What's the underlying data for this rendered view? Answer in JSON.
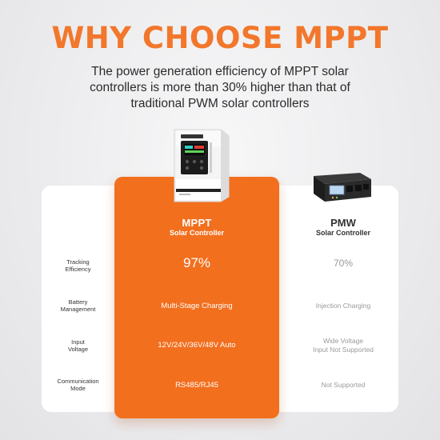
{
  "header": {
    "title": "WHY CHOOSE MPPT",
    "subtitle_lines": [
      "The power generation efficiency of MPPT solar",
      "controllers is more than 30% higher than that of",
      "traditional PWM solar controllers"
    ]
  },
  "columns": {
    "mppt": {
      "name": "MPPT",
      "subtitle": "Solar Controller"
    },
    "pwm": {
      "name": "PMW",
      "subtitle": "Solar Controller"
    }
  },
  "rows": [
    {
      "label_lines": [
        "Tracking",
        "Efficiency"
      ],
      "mppt": "97%",
      "pwm_lines": [
        "70%"
      ]
    },
    {
      "label_lines": [
        "Battery",
        "Management"
      ],
      "mppt": "Multi-Stage Charging",
      "pwm_lines": [
        "Injection Charging"
      ]
    },
    {
      "label_lines": [
        "Input",
        "Voltage"
      ],
      "mppt": "12V/24V/36V/48V Auto",
      "pwm_lines": [
        "Wide Voltage",
        "Input Not Supported"
      ]
    },
    {
      "label_lines": [
        "Communication",
        "Mode"
      ],
      "mppt": "RS485/RJ45",
      "pwm_lines": [
        "Not Supported"
      ]
    }
  ],
  "colors": {
    "accent": "#f26f1e",
    "headline": "#f2772c",
    "card": "#ffffff",
    "muted_text": "#9a9a9a"
  },
  "icons": {
    "mppt_product": "mppt-controller-device-image",
    "pwm_product": "pwm-controller-device-image"
  }
}
